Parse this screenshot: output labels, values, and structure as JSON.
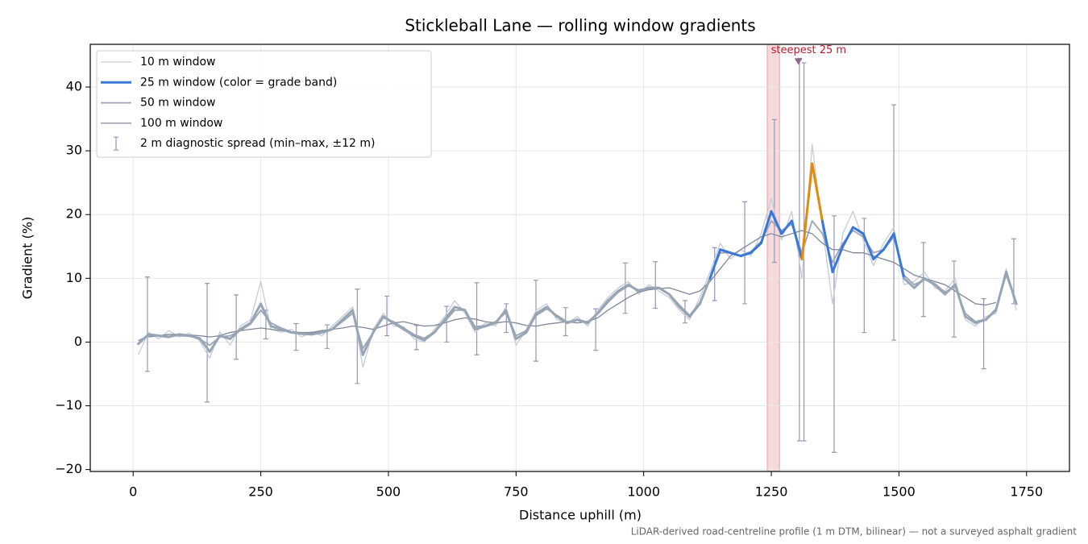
{
  "chart_data": {
    "type": "line",
    "title": "Stickleball Lane — rolling window gradients",
    "x_label": "Distance uphill (m)",
    "y_label": "Gradient (%)",
    "footnote": "LiDAR-derived road-centreline profile (1 m DTM, bilinear) — not a surveyed asphalt gradient",
    "xlim": [
      -84,
      1834
    ],
    "ylim": [
      -20.3,
      46.7
    ],
    "xticks": [
      0,
      250,
      500,
      750,
      1000,
      1250,
      1500,
      1750
    ],
    "yticks": [
      {
        "value": -20,
        "label": "−20"
      },
      {
        "value": -10,
        "label": "−10"
      },
      0,
      10,
      20,
      30,
      40
    ],
    "grid": true,
    "legend": "upper left",
    "x": [
      10,
      30,
      50,
      70,
      90,
      110,
      130,
      150,
      170,
      190,
      210,
      230,
      250,
      270,
      290,
      310,
      330,
      350,
      370,
      390,
      410,
      430,
      450,
      470,
      490,
      510,
      530,
      550,
      570,
      590,
      610,
      630,
      650,
      670,
      690,
      710,
      730,
      750,
      770,
      790,
      810,
      830,
      850,
      870,
      890,
      910,
      930,
      950,
      970,
      990,
      1010,
      1030,
      1050,
      1070,
      1090,
      1110,
      1130,
      1150,
      1170,
      1190,
      1210,
      1230,
      1250,
      1270,
      1290,
      1310,
      1330,
      1350,
      1370,
      1390,
      1410,
      1430,
      1450,
      1470,
      1490,
      1510,
      1530,
      1550,
      1570,
      1590,
      1610,
      1630,
      1650,
      1670,
      1690,
      1710,
      1730
    ],
    "series": [
      {
        "name": "10 m window",
        "color": "#c4ccd6",
        "width": 1.3,
        "values": [
          -2.0,
          1.5,
          0.5,
          1.8,
          0.8,
          1.4,
          0.2,
          -2.5,
          1.6,
          -0.5,
          2.5,
          3.5,
          9.5,
          2.0,
          1.5,
          2.0,
          0.8,
          1.6,
          1.0,
          2.5,
          4.0,
          5.5,
          -4.0,
          2.0,
          4.5,
          2.5,
          2.4,
          0.5,
          0.0,
          2.0,
          4.0,
          6.5,
          4.5,
          1.5,
          3.0,
          2.5,
          5.5,
          -0.5,
          2.0,
          5.0,
          6.0,
          3.5,
          3.0,
          4.0,
          2.5,
          5.0,
          7.0,
          8.5,
          9.5,
          7.5,
          9.0,
          8.0,
          7.0,
          5.0,
          3.5,
          7.0,
          11.0,
          15.5,
          13.0,
          14.5,
          13.5,
          17.0,
          22.5,
          16.0,
          20.5,
          10.0,
          31.0,
          18.0,
          6.0,
          17.0,
          20.5,
          16.0,
          12.0,
          15.5,
          18.0,
          9.0,
          9.5,
          11.0,
          8.5,
          8.0,
          10.0,
          3.5,
          2.5,
          4.0,
          4.5,
          11.5,
          5.0
        ]
      },
      {
        "name": "25 m window (color = grade band)",
        "color": "#3a78d8",
        "width": 3,
        "band_thresholds": [
          10,
          20,
          25
        ],
        "band_colors": [
          "#98a5b5",
          "#3a78d8",
          "#e08a10",
          "#c0182a"
        ],
        "values": [
          -0.3,
          1.2,
          1.0,
          0.8,
          1.2,
          1.0,
          0.6,
          -1.5,
          1.0,
          0.5,
          2.0,
          3.0,
          6.0,
          2.5,
          2.0,
          1.5,
          1.3,
          1.2,
          1.5,
          2.0,
          3.5,
          5.0,
          -2.0,
          1.5,
          4.0,
          3.0,
          2.0,
          1.0,
          0.3,
          1.5,
          3.5,
          5.5,
          5.0,
          2.0,
          2.5,
          3.0,
          5.0,
          0.5,
          1.5,
          4.5,
          5.5,
          4.0,
          3.0,
          3.5,
          3.0,
          4.5,
          6.5,
          8.0,
          9.0,
          8.0,
          8.5,
          8.5,
          7.5,
          5.5,
          4.0,
          6.0,
          10.0,
          14.5,
          14.0,
          13.5,
          14.0,
          15.5,
          20.5,
          17.0,
          19.0,
          13.0,
          28.0,
          19.0,
          11.0,
          15.0,
          18.0,
          17.0,
          13.0,
          14.5,
          17.0,
          10.0,
          8.5,
          10.0,
          9.0,
          7.5,
          9.0,
          4.0,
          3.0,
          3.5,
          5.0,
          11.0,
          6.0
        ]
      },
      {
        "name": "50 m window",
        "color": "#9aa6b6",
        "width": 1.8,
        "values": [
          0.2,
          1.0,
          1.0,
          0.9,
          1.0,
          0.9,
          0.5,
          -0.5,
          0.8,
          1.0,
          1.8,
          2.8,
          5.0,
          3.0,
          2.2,
          1.6,
          1.4,
          1.3,
          1.6,
          2.0,
          3.2,
          4.5,
          -1.0,
          1.5,
          3.8,
          3.2,
          2.2,
          1.2,
          0.6,
          1.6,
          3.2,
          5.0,
          5.0,
          2.4,
          2.6,
          3.2,
          4.6,
          1.0,
          1.8,
          4.2,
          5.2,
          4.2,
          3.2,
          3.4,
          3.2,
          4.4,
          6.2,
          7.8,
          8.8,
          8.2,
          8.4,
          8.4,
          7.6,
          5.8,
          4.2,
          6.2,
          10.2,
          14.0,
          14.0,
          13.6,
          14.2,
          15.8,
          19.0,
          17.5,
          18.5,
          14.0,
          19.0,
          17.0,
          12.5,
          15.5,
          17.5,
          16.5,
          14.0,
          14.5,
          16.5,
          10.5,
          9.0,
          9.8,
          9.2,
          7.8,
          8.8,
          4.5,
          3.2,
          3.6,
          5.2,
          10.5,
          6.2
        ]
      },
      {
        "name": "100 m window",
        "color": "#7f8796",
        "width": 1.3,
        "values": [
          null,
          0.8,
          1.0,
          1.2,
          1.2,
          1.1,
          1.0,
          0.8,
          1.0,
          1.5,
          1.8,
          2.0,
          2.2,
          2.0,
          1.8,
          1.6,
          1.5,
          1.5,
          1.8,
          2.0,
          2.2,
          2.5,
          2.3,
          2.0,
          2.5,
          3.0,
          3.2,
          2.8,
          2.5,
          2.6,
          3.0,
          3.5,
          3.8,
          3.6,
          3.2,
          3.0,
          3.2,
          3.0,
          2.6,
          2.5,
          2.8,
          3.0,
          3.2,
          3.0,
          3.2,
          3.8,
          5.0,
          6.0,
          7.0,
          7.8,
          8.2,
          8.4,
          8.5,
          8.0,
          7.5,
          8.0,
          9.5,
          11.5,
          13.5,
          14.5,
          15.5,
          16.5,
          17.0,
          16.5,
          17.0,
          17.5,
          17.0,
          15.5,
          14.5,
          14.5,
          14.0,
          14.0,
          13.5,
          13.0,
          12.5,
          11.5,
          10.5,
          10.0,
          9.5,
          9.0,
          8.0,
          7.0,
          6.0,
          5.8,
          6.2,
          null,
          null
        ]
      }
    ],
    "error_bars": {
      "name": "2 m diagnostic spread (min–max, ±12 m)",
      "color": "#9a94b8",
      "x": [
        28,
        145,
        202,
        260,
        319,
        380,
        439,
        497,
        555,
        614,
        673,
        731,
        789,
        847,
        906,
        964,
        1023,
        1081,
        1139,
        1198,
        1256,
        1305,
        1314,
        1373,
        1432,
        1490,
        1548,
        1608,
        1666,
        1725
      ],
      "low": [
        -4.6,
        -9.4,
        -2.7,
        0.5,
        -1.3,
        -1.0,
        -6.5,
        1.0,
        -1.2,
        0.0,
        -2.0,
        1.5,
        -3.0,
        1.0,
        -1.3,
        4.5,
        5.3,
        3.0,
        6.5,
        6.0,
        12.5,
        -15.5,
        -15.5,
        -17.3,
        1.5,
        0.3,
        4.0,
        0.8,
        -4.2,
        6.0
      ],
      "high": [
        10.2,
        9.2,
        7.4,
        5.0,
        2.9,
        2.7,
        8.3,
        7.2,
        2.6,
        5.6,
        9.3,
        6.0,
        9.7,
        5.4,
        5.2,
        12.4,
        12.6,
        6.5,
        14.8,
        22.0,
        34.9,
        44.5,
        43.8,
        19.8,
        19.4,
        37.2,
        15.6,
        12.7,
        6.8,
        16.2
      ]
    },
    "highlight": {
      "xmin": 1242,
      "xmax": 1266,
      "color": "#f6cfd2"
    },
    "annotation": {
      "text": "steepest 25 m",
      "x": 1303,
      "y": 44,
      "color": "#c0182a"
    }
  }
}
